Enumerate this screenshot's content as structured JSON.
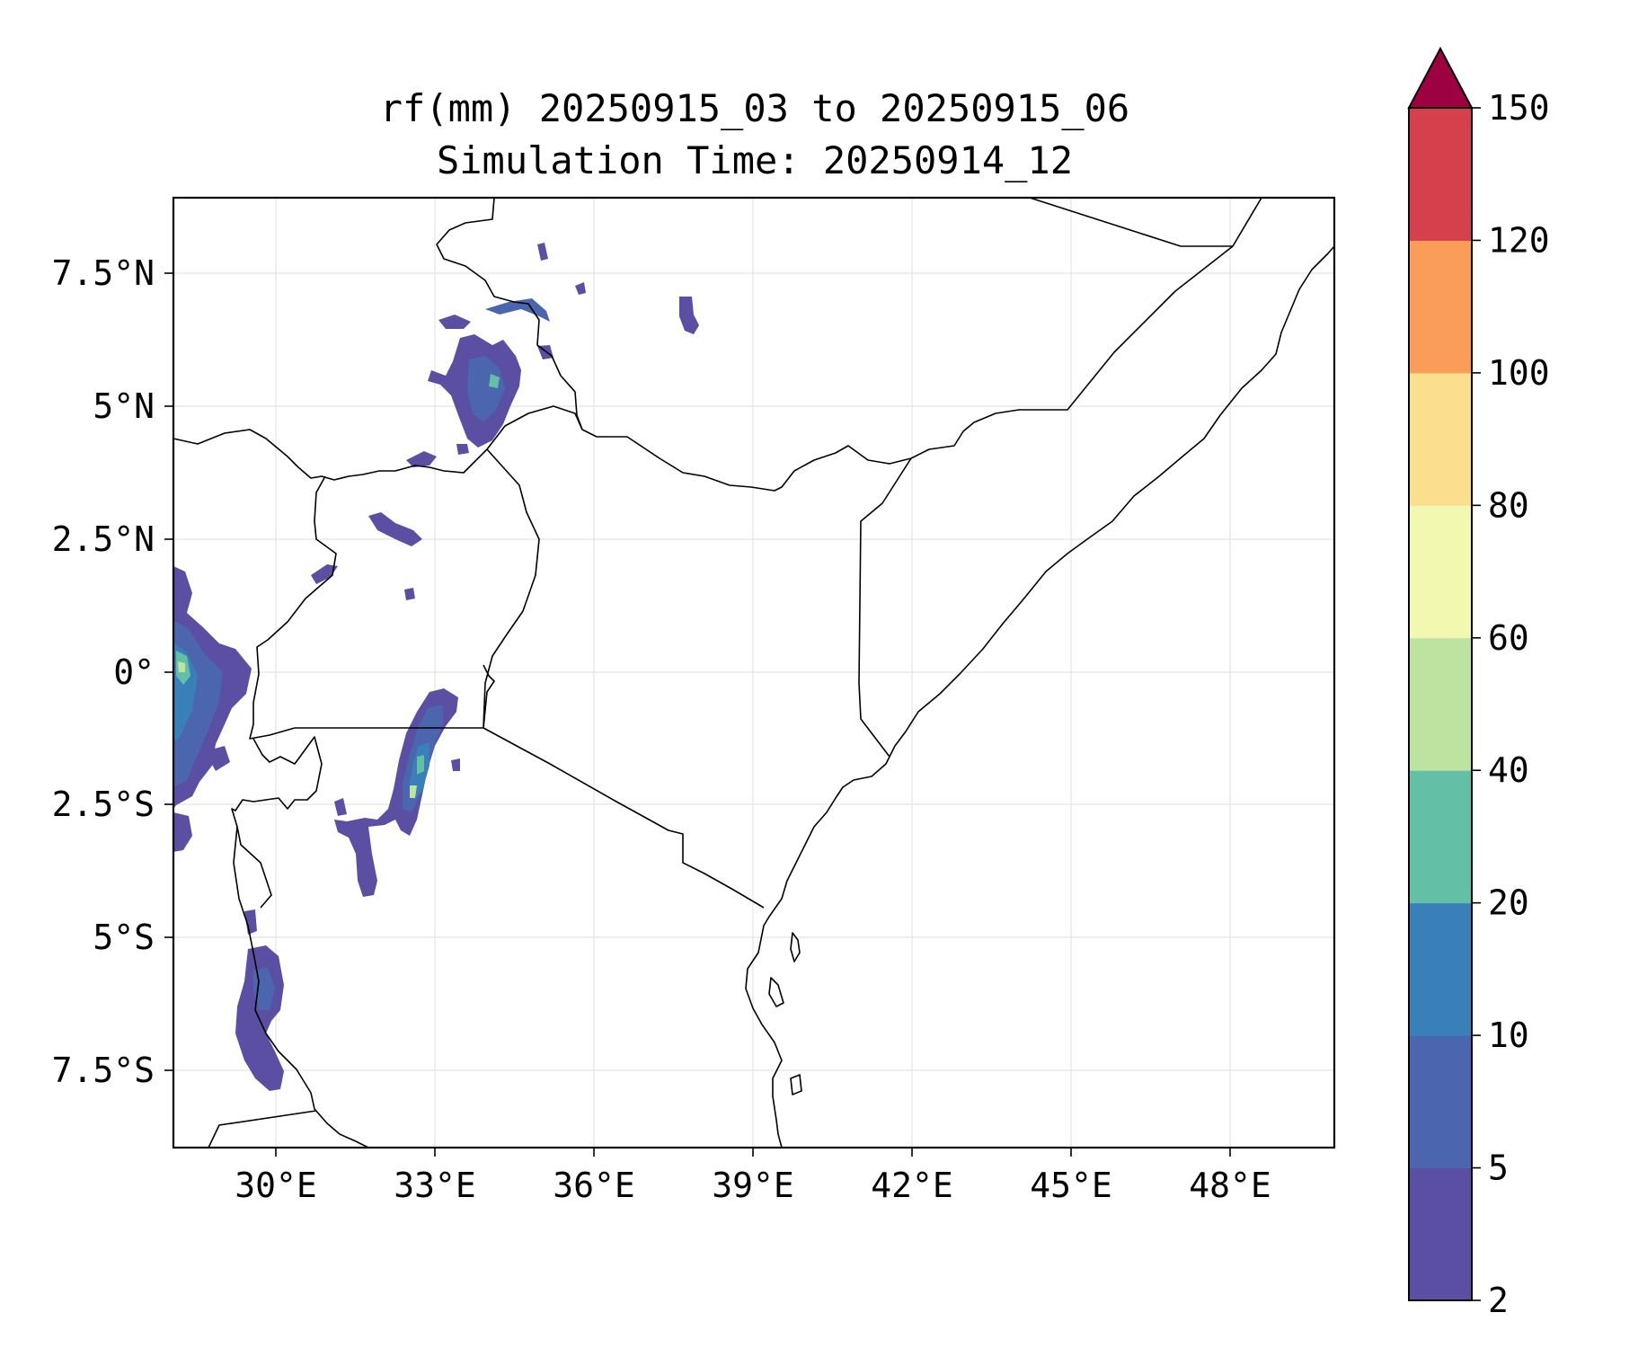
{
  "title": {
    "line1": "rf(mm) 20250915_03 to 20250915_06",
    "line2": "Simulation Time: 20250914_12"
  },
  "map": {
    "x_ticks": [
      "30°E",
      "33°E",
      "36°E",
      "39°E",
      "42°E",
      "45°E",
      "48°E"
    ],
    "y_ticks": [
      "7.5°N",
      "5°N",
      "2.5°N",
      "0°",
      "2.5°S",
      "5°S",
      "7.5°S"
    ]
  },
  "colorbar": {
    "tick_labels": [
      "2",
      "5",
      "10",
      "20",
      "40",
      "60",
      "80",
      "100",
      "120",
      "150"
    ],
    "colors": [
      "#5a4fa2",
      "#4b65ae",
      "#3980b9",
      "#63bfa6",
      "#bde3a1",
      "#f3f8b0",
      "#fbdf8e",
      "#f99d59",
      "#d63f4c"
    ],
    "extend_color": "#9e0142"
  },
  "chart_data": {
    "type": "heatmap",
    "title": "rf(mm) 20250915_03 to 20250915_06",
    "subtitle": "Simulation Time: 20250914_12",
    "xlim": [
      28.1,
      50
    ],
    "ylim": [
      -8.9,
      9
    ],
    "colorbar_levels": [
      2,
      5,
      10,
      20,
      40,
      60,
      80,
      100,
      120,
      150
    ],
    "colorbar_extend": "max",
    "grid": true
  }
}
